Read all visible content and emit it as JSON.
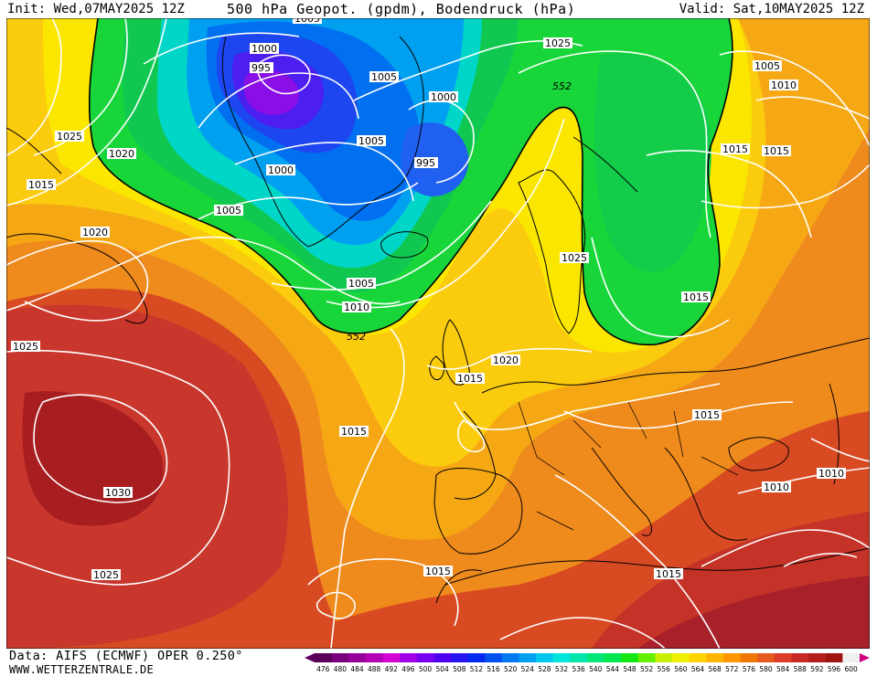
{
  "header": {
    "init": "Init: Wed,07MAY2025 12Z",
    "title": "500 hPa Geopot. (gpdm), Bodendruck (hPa)",
    "valid": "Valid: Sat,10MAY2025 12Z"
  },
  "footer": {
    "data_source": "Data: AIFS (ECMWF) OPER 0.250°",
    "website": "WWW.WETTERZENTRALE.DE"
  },
  "colors": {
    "ocean_red": "#c8362c",
    "orange": "#f08c1c",
    "yellow": "#f8e000",
    "green": "#0cd33a",
    "blue": "#1e5ef0",
    "purple": "#7a1fe0",
    "isobar": "#ffffff",
    "coast": "#000000"
  },
  "scale": {
    "values": [
      "476",
      "480",
      "484",
      "488",
      "492",
      "496",
      "500",
      "504",
      "508",
      "512",
      "516",
      "520",
      "524",
      "528",
      "532",
      "536",
      "540",
      "544",
      "548",
      "552",
      "556",
      "560",
      "564",
      "568",
      "572",
      "576",
      "580",
      "584",
      "588",
      "592",
      "596",
      "600"
    ],
    "colors": [
      "#5a005a",
      "#78007a",
      "#96009a",
      "#b400b4",
      "#d200d2",
      "#a000e6",
      "#7800f0",
      "#5000f0",
      "#2814f0",
      "#0028f0",
      "#0050f0",
      "#0078f0",
      "#00a0f0",
      "#00c8f0",
      "#00e6dc",
      "#00e6aa",
      "#00e678",
      "#00e650",
      "#14e614",
      "#64f000",
      "#c8f000",
      "#f0f000",
      "#ffd200",
      "#ffb400",
      "#ff9600",
      "#f07800",
      "#e65a1e",
      "#dc3c28",
      "#c82828",
      "#b41e1e",
      "#a01414",
      "#f0f0f0"
    ]
  },
  "contour_552_label": "552",
  "isobar_labels": [
    "1005",
    "1000",
    "995",
    "1005",
    "1000",
    "1025",
    "552",
    "1005",
    "1010",
    "995",
    "1025",
    "1020",
    "1005",
    "1000",
    "1015",
    "1015",
    "1015",
    "1005",
    "1020",
    "1025",
    "1005",
    "1010",
    "552",
    "1015",
    "1025",
    "1020",
    "1015",
    "1015",
    "1030",
    "1010",
    "1015",
    "1010",
    "1025",
    "1015",
    "1015"
  ]
}
